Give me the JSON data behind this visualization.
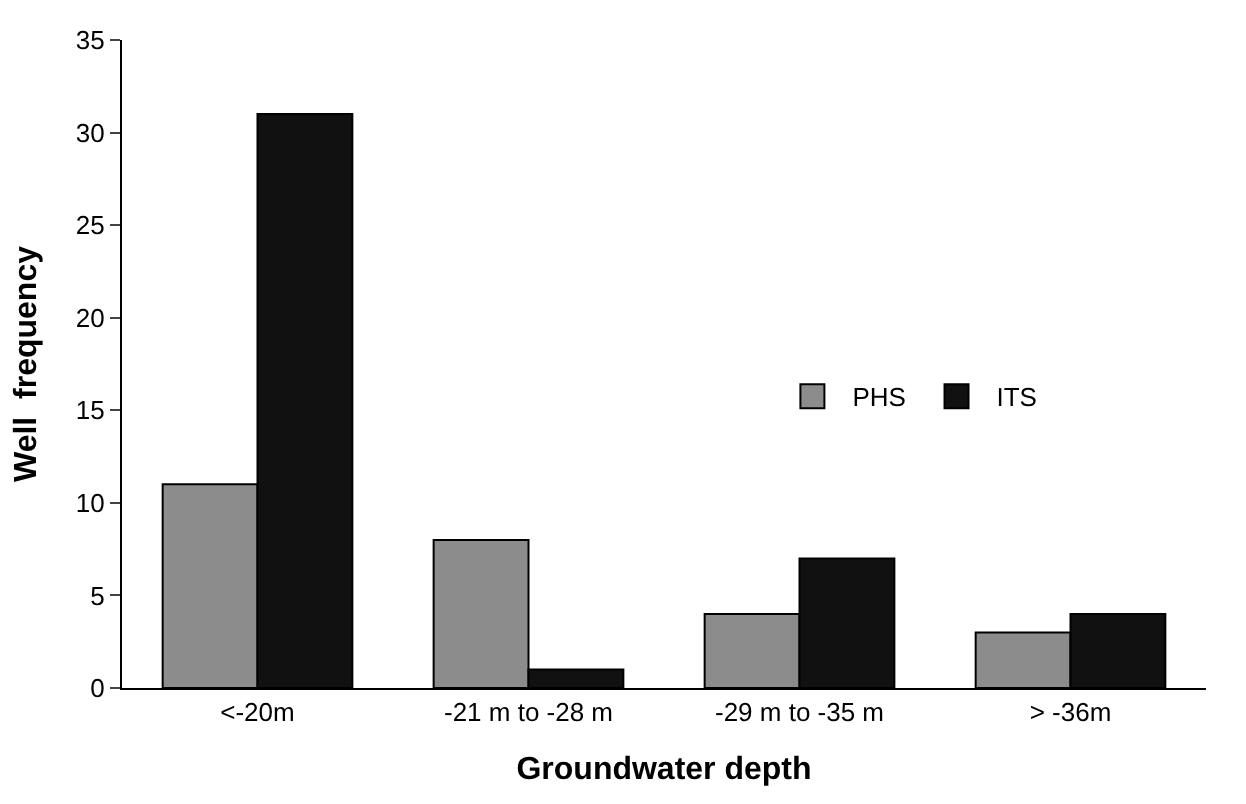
{
  "chart_data": {
    "type": "bar",
    "xlabel": "Groundwater depth",
    "ylabel": "Well  frequency",
    "categories": [
      "<-20m",
      "-21 m to -28 m",
      "-29 m to -35 m",
      "> -36m"
    ],
    "series": [
      {
        "name": "PHS",
        "color": "#8c8c8c",
        "values": [
          11,
          8,
          4,
          3
        ]
      },
      {
        "name": "ITS",
        "color": "#111111",
        "values": [
          31,
          1,
          7,
          4
        ]
      }
    ],
    "ylim": [
      0,
      35
    ],
    "yticks": [
      0,
      5,
      10,
      15,
      20,
      25,
      30,
      35
    ],
    "legend": "right"
  }
}
